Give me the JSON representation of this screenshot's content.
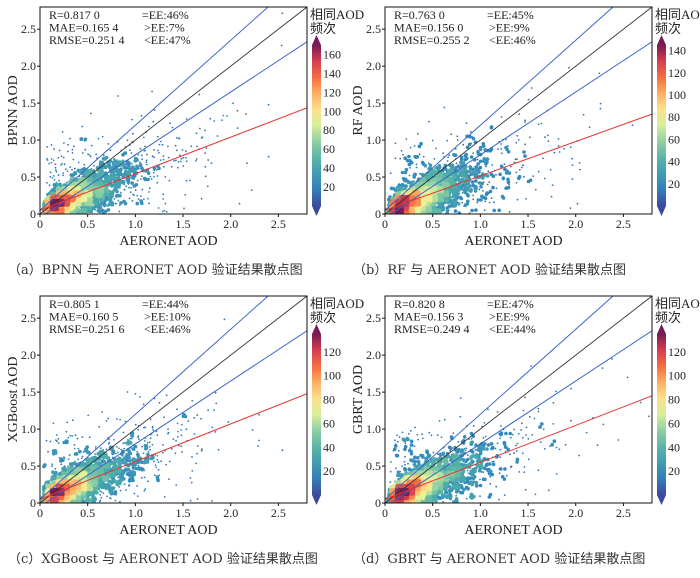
{
  "chart_data": [
    {
      "type": "scatter",
      "panel": "a",
      "model": "BPNN",
      "caption": "（a）BPNN 与 AERONET AOD 验证结果散点图",
      "xlabel": "AERONET AOD",
      "ylabel": "BPNN AOD",
      "xlim": [
        0,
        2.8
      ],
      "ylim": [
        0,
        2.8
      ],
      "xticks": [
        0,
        0.5,
        1.0,
        1.5,
        2.0,
        2.5
      ],
      "xtick_labels": [
        "0",
        "0.5",
        "1.0",
        "1.5",
        "2.0",
        "2.5"
      ],
      "yticks": [
        0,
        0.5,
        1.0,
        1.5,
        2.0,
        2.5
      ],
      "ytick_labels": [
        "0",
        "0.5",
        "1.0",
        "1.5",
        "2.0",
        "2.5"
      ],
      "stats": [
        "R=0.817 0",
        "MAE=0.165 4",
        "RMSE=0.251 4"
      ],
      "ee": [
        "=EE:46%",
        ">EE:7%",
        "<EE:47%"
      ],
      "fit": {
        "slope": 0.495,
        "intercept": 0.05
      },
      "colorbar": {
        "title1": "相同AOD",
        "title2": "频次",
        "vmax": 170,
        "ticks": [
          20,
          40,
          60,
          80,
          100,
          120,
          140,
          160
        ],
        "tick_labels": [
          "20",
          "40",
          "60",
          "80",
          "100",
          "120",
          "140",
          "160"
        ]
      },
      "seed": 11
    },
    {
      "type": "scatter",
      "panel": "b",
      "model": "RF",
      "caption": "（b）RF 与 AERONET AOD 验证结果散点图",
      "xlabel": "AERONET AOD",
      "ylabel": "RF AOD",
      "xlim": [
        0,
        2.8
      ],
      "ylim": [
        0,
        2.8
      ],
      "xticks": [
        0,
        0.5,
        1.0,
        1.5,
        2.0,
        2.5
      ],
      "xtick_labels": [
        "0",
        "0.5",
        "1.0",
        "1.5",
        "2.0",
        "2.5"
      ],
      "yticks": [
        0,
        0.5,
        1.0,
        1.5,
        2.0,
        2.5
      ],
      "ytick_labels": [
        "0",
        "0.5",
        "1.0",
        "1.5",
        "2.0",
        "2.5"
      ],
      "stats": [
        "R=0.763 0",
        "MAE=0.156 0",
        "RMSE=0.255 2"
      ],
      "ee": [
        "=EE:45%",
        ">EE:9%",
        "<EE:46%"
      ],
      "fit": {
        "slope": 0.465,
        "intercept": 0.05
      },
      "colorbar": {
        "title1": "相同AOD",
        "title2": "频次",
        "vmax": 145,
        "ticks": [
          20,
          40,
          60,
          80,
          100,
          120,
          140
        ],
        "tick_labels": [
          "20",
          "40",
          "60",
          "80",
          "100",
          "120",
          "140"
        ]
      },
      "seed": 23
    },
    {
      "type": "scatter",
      "panel": "c",
      "model": "XGBoost",
      "caption": "（c）XGBoost 与 AERONET AOD 验证结果散点图",
      "xlabel": "AERONET AOD",
      "ylabel": "XGBoost AOD",
      "xlim": [
        0,
        2.8
      ],
      "ylim": [
        0,
        2.8
      ],
      "xticks": [
        0,
        0.5,
        1.0,
        1.5,
        2.0,
        2.5
      ],
      "xtick_labels": [
        "0",
        "0.5",
        "1.0",
        "1.5",
        "2.0",
        "2.5"
      ],
      "yticks": [
        0,
        0.5,
        1.0,
        1.5,
        2.0,
        2.5
      ],
      "ytick_labels": [
        "0",
        "0.5",
        "1.0",
        "1.5",
        "2.0",
        "2.5"
      ],
      "stats": [
        "R=0.805 1",
        "MAE=0.160 5",
        "RMSE=0.251 6"
      ],
      "ee": [
        "=EE:44%",
        ">EE:10%",
        "<EE:46%"
      ],
      "fit": {
        "slope": 0.51,
        "intercept": 0.05
      },
      "colorbar": {
        "title1": "相同AOD",
        "title2": "频次",
        "vmax": 135,
        "ticks": [
          20,
          40,
          60,
          80,
          100,
          120
        ],
        "tick_labels": [
          "20",
          "40",
          "60",
          "80",
          "100",
          "120"
        ]
      },
      "seed": 37
    },
    {
      "type": "scatter",
      "panel": "d",
      "model": "GBRT",
      "caption": "（d）GBRT 与 AERONET AOD 验证结果散点图",
      "xlabel": "AERONET AOD",
      "ylabel": "GBRT AOD",
      "xlim": [
        0,
        2.8
      ],
      "ylim": [
        0,
        2.8
      ],
      "xticks": [
        0,
        0.5,
        1.0,
        1.5,
        2.0,
        2.5
      ],
      "xtick_labels": [
        "0",
        "0.5",
        "1.0",
        "1.5",
        "2.0",
        "2.5"
      ],
      "yticks": [
        0,
        0.5,
        1.0,
        1.5,
        2.0,
        2.5
      ],
      "ytick_labels": [
        "0",
        "0.5",
        "1.0",
        "1.5",
        "2.0",
        "2.5"
      ],
      "stats": [
        "R=0.820 8",
        "MAE=0.156 3",
        "RMSE=0.249 4"
      ],
      "ee": [
        "=EE:47%",
        ">EE:9%",
        "<EE:44%"
      ],
      "fit": {
        "slope": 0.5,
        "intercept": 0.05
      },
      "colorbar": {
        "title1": "相同AOD",
        "title2": "频次",
        "vmax": 135,
        "ticks": [
          20,
          40,
          60,
          80,
          100,
          120
        ],
        "tick_labels": [
          "20",
          "40",
          "60",
          "80",
          "100",
          "120"
        ]
      },
      "seed": 51
    }
  ],
  "colors": {
    "one_to_one": "#333333",
    "ee_lines": "#3a64c8",
    "fit_line": "#e8332f"
  },
  "ee_envelope": {
    "abs": 0.05,
    "rel": 0.15
  }
}
